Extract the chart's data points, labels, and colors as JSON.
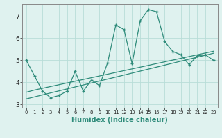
{
  "title": "",
  "xlabel": "Humidex (Indice chaleur)",
  "x_values": [
    0,
    1,
    2,
    3,
    4,
    5,
    6,
    7,
    8,
    9,
    10,
    11,
    12,
    13,
    14,
    15,
    16,
    17,
    18,
    19,
    20,
    21,
    22,
    23
  ],
  "y_main": [
    5.0,
    4.3,
    3.6,
    3.3,
    3.4,
    3.6,
    4.5,
    3.6,
    4.1,
    3.85,
    4.9,
    6.6,
    6.4,
    4.85,
    6.8,
    7.3,
    7.2,
    5.85,
    5.4,
    5.25,
    4.8,
    5.2,
    5.25,
    5.0
  ],
  "y_line1": [
    3.55,
    3.65,
    3.73,
    3.81,
    3.89,
    3.97,
    4.05,
    4.13,
    4.21,
    4.29,
    4.37,
    4.45,
    4.53,
    4.61,
    4.69,
    4.77,
    4.85,
    4.93,
    5.01,
    5.09,
    5.17,
    5.25,
    5.33,
    5.41
  ],
  "y_line2": [
    3.25,
    3.34,
    3.43,
    3.52,
    3.61,
    3.7,
    3.79,
    3.88,
    3.97,
    4.06,
    4.15,
    4.24,
    4.33,
    4.42,
    4.51,
    4.6,
    4.69,
    4.78,
    4.87,
    4.96,
    5.05,
    5.14,
    5.23,
    5.32
  ],
  "color_main": "#2e8b7a",
  "color_line1": "#2e8b7a",
  "color_line2": "#2e8b7a",
  "bg_color": "#dff2ef",
  "grid_color": "#b8ddd8",
  "ylim": [
    2.85,
    7.55
  ],
  "yticks": [
    3,
    4,
    5,
    6,
    7
  ],
  "xlim": [
    -0.5,
    23.5
  ]
}
